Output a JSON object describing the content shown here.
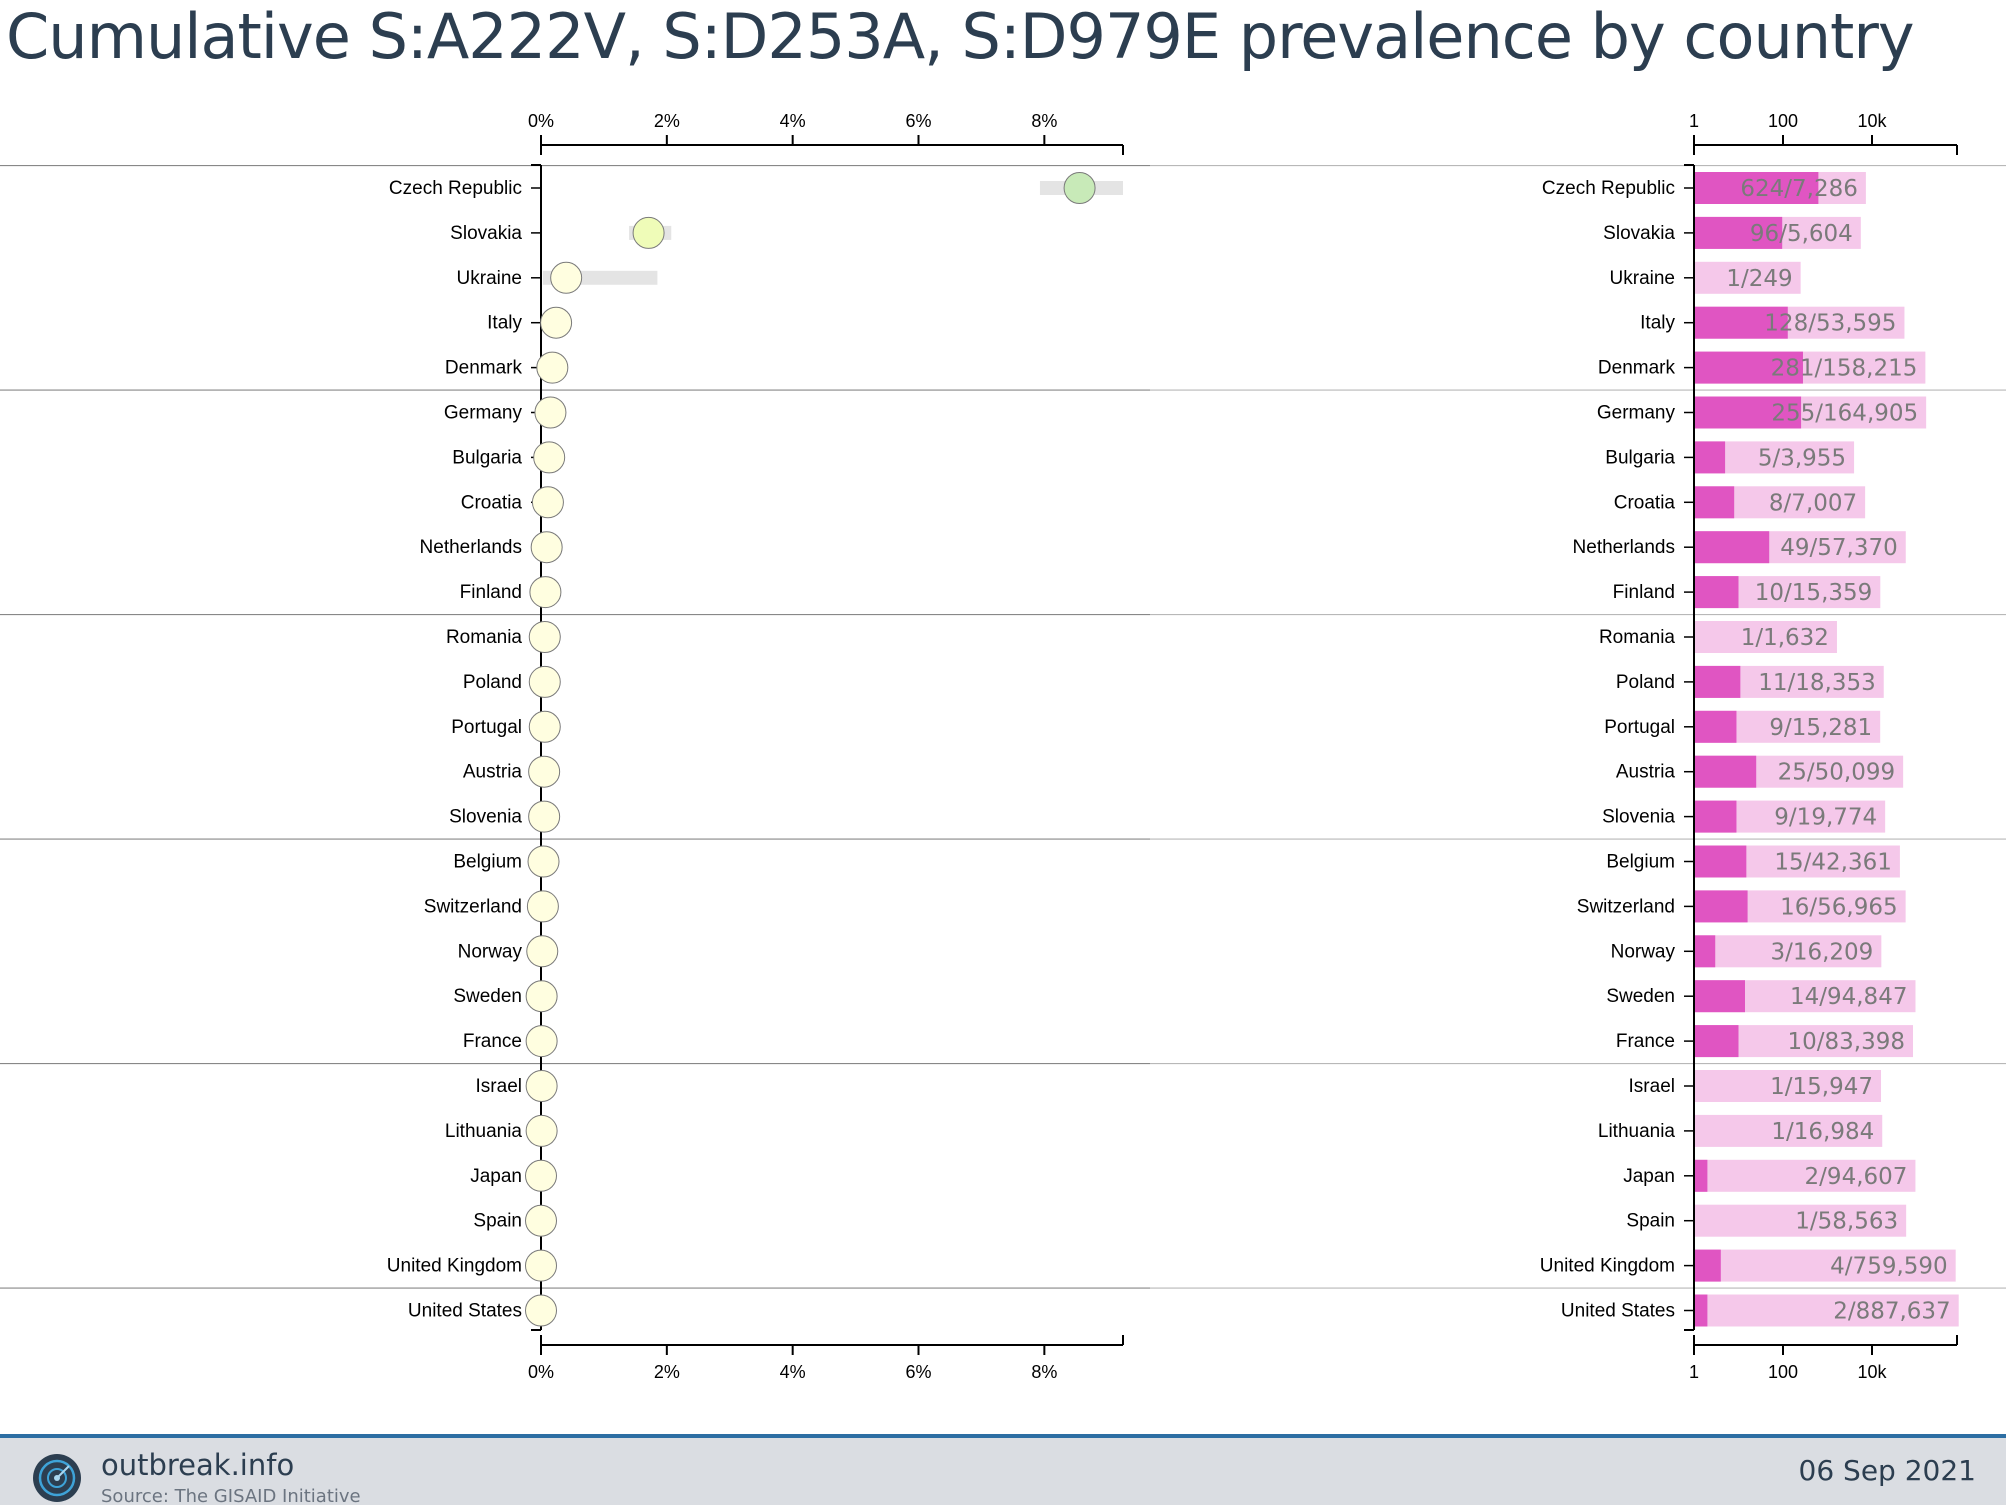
{
  "title": "Cumulative S:A222V, S:D253A, S:D979E prevalence by country",
  "footer": {
    "site": "outbreak.info",
    "source": "Source: The GISAID Initiative",
    "date": "06 Sep 2021"
  },
  "colors": {
    "axis": "#000000",
    "separator": "#888888",
    "ci_band": "#e4e4e4",
    "bar_total": "#f5c8ea",
    "bar_found": "#e055c2",
    "bar_text": "#7a7a7a",
    "circle_low": "#fffee0",
    "circle_mid": "#effcb8",
    "circle_high": "#c8eab8"
  },
  "chart_data": [
    {
      "type": "scatter",
      "ylabel": "",
      "xlabel": "",
      "xlim": [
        0,
        0.0925
      ],
      "x_ticks": [
        0,
        0.02,
        0.04,
        0.06,
        0.08
      ],
      "x_tick_labels": [
        "0%",
        "2%",
        "4%",
        "6%",
        "8%"
      ],
      "series": [
        {
          "countries": [
            "Czech Republic",
            "Slovakia",
            "Ukraine",
            "Italy",
            "Denmark",
            "Germany",
            "Bulgaria",
            "Croatia",
            "Netherlands",
            "Finland",
            "Romania",
            "Poland",
            "Portugal",
            "Austria",
            "Slovenia",
            "Belgium",
            "Switzerland",
            "Norway",
            "Sweden",
            "France",
            "Israel",
            "Lithuania",
            "Japan",
            "Spain",
            "United Kingdom",
            "United States"
          ],
          "prevalence": [
            0.0856,
            0.0171,
            0.004,
            0.0024,
            0.0018,
            0.0015,
            0.0013,
            0.0011,
            0.0009,
            0.0007,
            0.0006,
            0.0006,
            0.0006,
            0.0005,
            0.0005,
            0.0004,
            0.0003,
            0.0002,
            0.0001,
            0.0001,
            0.0001,
            0.0001,
            0.0,
            0.0,
            0.0,
            0.0
          ],
          "ci_lower": [
            0.0793,
            0.014,
            0.0003,
            0.002,
            0.0016,
            0.0013,
            0.0004,
            0.0005,
            0.0007,
            0.0004,
            0.0001,
            0.0003,
            0.0003,
            0.0003,
            0.0003,
            0.0002,
            0.0002,
            0.0001,
            0.0001,
            0.0001,
            0.0,
            0.0,
            0.0,
            0.0,
            0.0,
            0.0
          ],
          "ci_upper": [
            0.0925,
            0.0207,
            0.0185,
            0.0028,
            0.002,
            0.0017,
            0.0028,
            0.0021,
            0.0011,
            0.0012,
            0.003,
            0.001,
            0.0011,
            0.0007,
            0.0008,
            0.0006,
            0.0005,
            0.0005,
            0.0002,
            0.0002,
            0.0003,
            0.0003,
            0.0001,
            0.0001,
            0.0,
            0.0
          ]
        }
      ]
    },
    {
      "type": "bar",
      "scale": "log",
      "xlim": [
        1,
        1000000
      ],
      "x_ticks": [
        1,
        100,
        10000
      ],
      "x_tick_labels": [
        "1",
        "100",
        "10k"
      ],
      "categories": [
        "Czech Republic",
        "Slovakia",
        "Ukraine",
        "Italy",
        "Denmark",
        "Germany",
        "Bulgaria",
        "Croatia",
        "Netherlands",
        "Finland",
        "Romania",
        "Poland",
        "Portugal",
        "Austria",
        "Slovenia",
        "Belgium",
        "Switzerland",
        "Norway",
        "Sweden",
        "France",
        "Israel",
        "Lithuania",
        "Japan",
        "Spain",
        "United Kingdom",
        "United States"
      ],
      "found": [
        624,
        96,
        1,
        128,
        281,
        255,
        5,
        8,
        49,
        10,
        1,
        11,
        9,
        25,
        9,
        15,
        16,
        3,
        14,
        10,
        1,
        1,
        2,
        1,
        4,
        2
      ],
      "total": [
        7286,
        5604,
        249,
        53595,
        158215,
        164905,
        3955,
        7007,
        57370,
        15359,
        1632,
        18353,
        15281,
        50099,
        19774,
        42361,
        56965,
        16209,
        94847,
        83398,
        15947,
        16984,
        94607,
        58563,
        759590,
        887637
      ],
      "labels": [
        "624/7,286",
        "96/5,604",
        "1/249",
        "128/53,595",
        "281/158,215",
        "255/164,905",
        "5/3,955",
        "8/7,007",
        "49/57,370",
        "10/15,359",
        "1/1,632",
        "11/18,353",
        "9/15,281",
        "25/50,099",
        "9/19,774",
        "15/42,361",
        "16/56,965",
        "3/16,209",
        "14/94,847",
        "10/83,398",
        "1/15,947",
        "1/16,984",
        "2/94,607",
        "1/58,563",
        "4/759,590",
        "2/887,637"
      ]
    }
  ]
}
